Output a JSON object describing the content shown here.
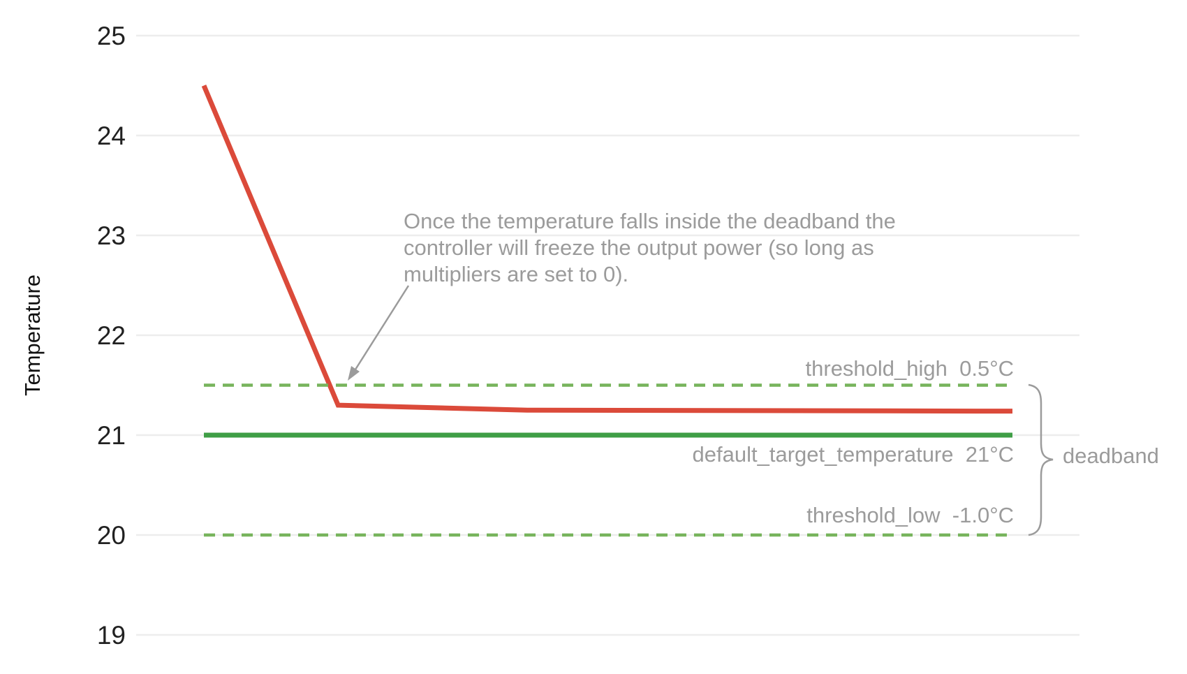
{
  "chart_data": {
    "type": "line",
    "title": "",
    "xlabel": "",
    "ylabel": "Temperature",
    "yticks": [
      25,
      24,
      23,
      22,
      21,
      20,
      19
    ],
    "ylim": [
      18.6,
      25.3
    ],
    "xlim": [
      0,
      1
    ],
    "x_axis_labels": "none",
    "grid": "horizontal",
    "legend": "none",
    "series": [
      {
        "name": "temperature",
        "kind": "line",
        "color": "#db4a3a",
        "stroke_width": 7,
        "x": [
          0,
          0.166,
          0.4,
          1.0
        ],
        "y": [
          24.5,
          21.3,
          21.25,
          21.24
        ]
      },
      {
        "name": "default_target_temperature",
        "kind": "hline",
        "style": "solid",
        "color": "#3f9e46",
        "stroke_width": 7,
        "value": 21,
        "label": "default_target_temperature  21°C"
      },
      {
        "name": "threshold_high",
        "kind": "hline",
        "style": "dashed",
        "color": "#77b45c",
        "stroke_width": 4.5,
        "value": 21.5,
        "label": "threshold_high  0.5°C"
      },
      {
        "name": "threshold_low",
        "kind": "hline",
        "style": "dashed",
        "color": "#77b45c",
        "stroke_width": 4.5,
        "value": 20,
        "label": "threshold_low  -1.0°C"
      }
    ],
    "annotation": {
      "text": "Once the temperature falls inside the deadband the controller will freeze the output power (so long as multipliers are set to 0).",
      "lines": [
        "Once the temperature falls inside the deadband the",
        "controller will freeze the output power (so long as",
        "multipliers are set to 0)."
      ],
      "arrow_points_to": {
        "x": 0.18,
        "y": 21.5
      }
    },
    "deadband": {
      "label": "deadband",
      "from_value": 21.5,
      "to_value": 20
    },
    "colors": {
      "line_red": "#db4a3a",
      "green_solid": "#3f9e46",
      "green_dashed": "#77b45c",
      "gridline": "#ededed",
      "text_gray": "#9b9b9b",
      "text_black": "#212121"
    }
  }
}
